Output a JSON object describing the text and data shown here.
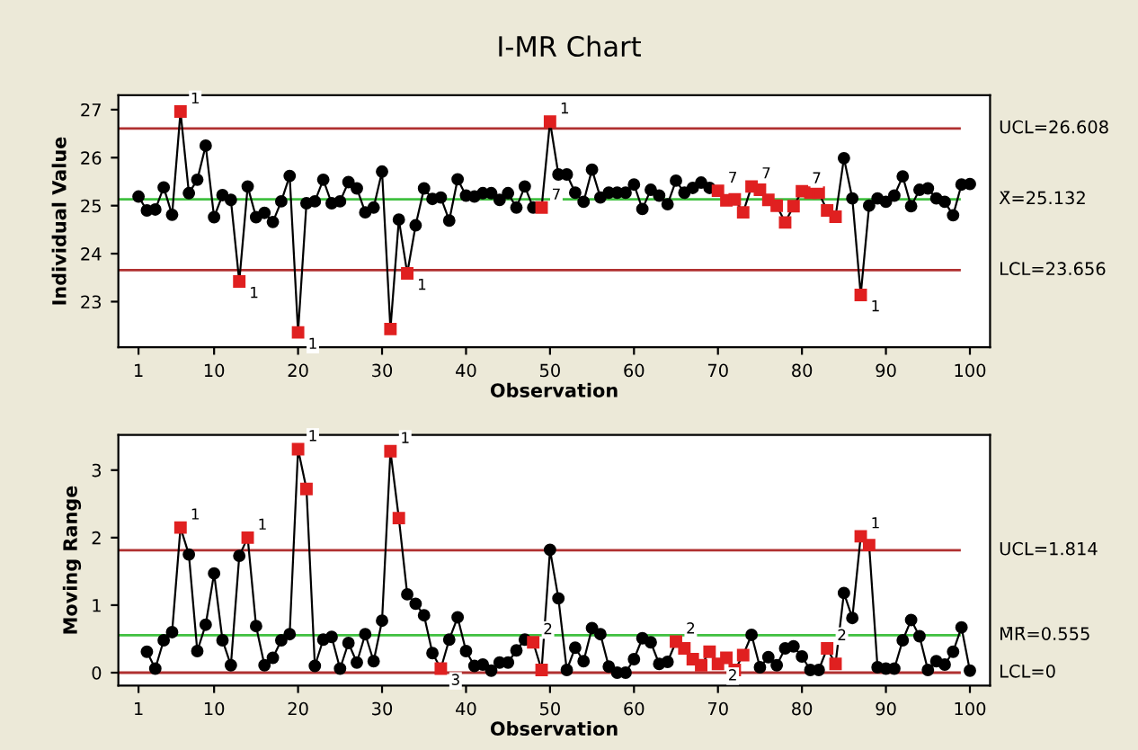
{
  "chart_data": [
    {
      "type": "line",
      "title": "I-MR Chart",
      "xlabel": "Observation",
      "ylabel": "Individual Value",
      "marker": "circle",
      "grid": false,
      "legend": false,
      "x": [
        1,
        2,
        3,
        4,
        5,
        6,
        7,
        8,
        9,
        10,
        11,
        12,
        13,
        14,
        15,
        16,
        17,
        18,
        19,
        20,
        21,
        22,
        23,
        24,
        25,
        26,
        27,
        28,
        29,
        30,
        31,
        32,
        33,
        34,
        35,
        36,
        37,
        38,
        39,
        40,
        41,
        42,
        43,
        44,
        45,
        46,
        47,
        48,
        49,
        50,
        51,
        52,
        53,
        54,
        55,
        56,
        57,
        58,
        59,
        60,
        61,
        62,
        63,
        64,
        65,
        66,
        67,
        68,
        69,
        70,
        71,
        72,
        73,
        74,
        75,
        76,
        77,
        78,
        79,
        80,
        81,
        82,
        83,
        84,
        85,
        86,
        87,
        88,
        89,
        90,
        91,
        92,
        93,
        94,
        95,
        96,
        97,
        98,
        99,
        100
      ],
      "xlim": [
        -1.4,
        102.4
      ],
      "xticks": [
        1,
        10,
        20,
        30,
        40,
        50,
        60,
        70,
        80,
        90,
        100
      ],
      "ylim": [
        22.05,
        27.3
      ],
      "yticks": [
        23,
        24,
        25,
        26,
        27
      ],
      "series": [
        {
          "color": "#000000",
          "values": [
            25.19,
            24.9,
            24.92,
            25.38,
            24.81,
            26.96,
            25.26,
            25.54,
            26.25,
            24.76,
            25.22,
            25.12,
            23.42,
            25.4,
            24.76,
            24.85,
            24.66,
            25.09,
            25.62,
            22.36,
            25.05,
            25.09,
            25.54,
            25.05,
            25.09,
            25.49,
            25.36,
            24.86,
            24.96,
            25.71,
            22.43,
            24.71,
            23.59,
            24.59,
            25.36,
            25.14,
            25.17,
            24.69,
            25.55,
            25.21,
            25.19,
            25.26,
            25.26,
            25.12,
            25.26,
            24.96,
            25.4,
            24.96,
            24.96,
            26.75,
            25.65,
            25.65,
            25.27,
            25.08,
            25.75,
            25.17,
            25.27,
            25.27,
            25.27,
            25.44,
            24.93,
            25.33,
            25.21,
            25.03,
            25.52,
            25.27,
            25.37,
            25.48,
            25.37,
            25.31,
            25.11,
            25.13,
            24.86,
            25.4,
            25.33,
            25.12,
            25.0,
            24.65,
            24.99,
            25.3,
            25.27,
            25.27,
            24.9,
            24.77,
            25.99,
            25.15,
            23.14,
            25.0,
            25.15,
            25.08,
            25.21,
            25.61,
            24.99,
            25.33,
            25.36,
            25.15,
            25.08,
            24.8,
            25.44,
            25.45
          ],
          "colors": [
            "#000000",
            "#000000",
            "#000000",
            "#000000",
            "#000000",
            "#e02020",
            "#000000",
            "#000000",
            "#000000",
            "#000000",
            "#000000",
            "#000000",
            "#e02020",
            "#000000",
            "#000000",
            "#000000",
            "#000000",
            "#000000",
            "#000000",
            "#e02020",
            "#000000",
            "#000000",
            "#000000",
            "#000000",
            "#000000",
            "#000000",
            "#000000",
            "#000000",
            "#000000",
            "#000000",
            "#e02020",
            "#000000",
            "#e02020",
            "#000000",
            "#000000",
            "#000000",
            "#000000",
            "#000000",
            "#000000",
            "#000000",
            "#000000",
            "#000000",
            "#000000",
            "#000000",
            "#000000",
            "#000000",
            "#000000",
            "#000000",
            "#e02020",
            "#e02020",
            "#000000",
            "#000000",
            "#000000",
            "#000000",
            "#000000",
            "#000000",
            "#000000",
            "#000000",
            "#000000",
            "#000000",
            "#000000",
            "#000000",
            "#000000",
            "#000000",
            "#000000",
            "#000000",
            "#000000",
            "#000000",
            "#000000",
            "#e02020",
            "#e02020",
            "#e02020",
            "#e02020",
            "#e02020",
            "#e02020",
            "#e02020",
            "#e02020",
            "#e02020",
            "#e02020",
            "#e02020",
            "#e02020",
            "#e02020",
            "#e02020",
            "#e02020",
            "#000000",
            "#000000",
            "#e02020",
            "#000000",
            "#000000",
            "#000000",
            "#000000",
            "#000000",
            "#000000",
            "#000000",
            "#000000",
            "#000000",
            "#000000",
            "#000000",
            "#000000",
            "#000000"
          ]
        }
      ],
      "ref_lines": [
        {
          "axis": "y",
          "value": 26.608,
          "label": "UCL=26.608",
          "color": "#b03030"
        },
        {
          "axis": "y",
          "value": 25.132,
          "label": "X̄=25.132",
          "color": "#40c040"
        },
        {
          "axis": "y",
          "value": 23.656,
          "label": "LCL=23.656",
          "color": "#b03030"
        }
      ],
      "annotations": [
        {
          "text": "1",
          "x": 6,
          "y": 26.96
        },
        {
          "text": "1",
          "x": 13,
          "y": 23.42
        },
        {
          "text": "1",
          "x": 20,
          "y": 22.36
        },
        {
          "text": "1",
          "x": 33,
          "y": 23.59
        },
        {
          "text": "1",
          "x": 50,
          "y": 26.75
        },
        {
          "text": "1",
          "x": 87,
          "y": 23.14
        },
        {
          "text": "7",
          "x": 49,
          "y": 24.96
        },
        {
          "text": "7",
          "x": 70,
          "y": 25.31
        },
        {
          "text": "7",
          "x": 74,
          "y": 25.4
        },
        {
          "text": "7",
          "x": 80,
          "y": 25.3
        }
      ]
    },
    {
      "type": "line",
      "xlabel": "Observation",
      "ylabel": "Moving Range",
      "marker": "circle",
      "grid": false,
      "legend": false,
      "x": [
        2,
        3,
        4,
        5,
        6,
        7,
        8,
        9,
        10,
        11,
        12,
        13,
        14,
        15,
        16,
        17,
        18,
        19,
        20,
        21,
        22,
        23,
        24,
        25,
        26,
        27,
        28,
        29,
        30,
        31,
        32,
        33,
        34,
        35,
        36,
        37,
        38,
        39,
        40,
        41,
        42,
        43,
        44,
        45,
        46,
        47,
        48,
        49,
        50,
        51,
        52,
        53,
        54,
        55,
        56,
        57,
        58,
        59,
        60,
        61,
        62,
        63,
        64,
        65,
        66,
        67,
        68,
        69,
        70,
        71,
        72,
        73,
        74,
        75,
        76,
        77,
        78,
        79,
        80,
        81,
        82,
        83,
        84,
        85,
        86,
        87,
        88,
        89,
        90,
        91,
        92,
        93,
        94,
        95,
        96,
        97,
        98,
        99,
        100
      ],
      "xlim": [
        -1.4,
        102.4
      ],
      "xticks": [
        1,
        10,
        20,
        30,
        40,
        50,
        60,
        70,
        80,
        90,
        100
      ],
      "ylim": [
        -0.19,
        3.52
      ],
      "yticks": [
        0,
        1,
        2,
        3
      ],
      "series": [
        {
          "color": "#000000",
          "values": [
            0.31,
            0.06,
            0.48,
            0.6,
            2.15,
            1.75,
            0.32,
            0.71,
            1.47,
            0.48,
            0.11,
            1.73,
            2.0,
            0.69,
            0.11,
            0.22,
            0.48,
            0.57,
            3.31,
            2.72,
            0.1,
            0.49,
            0.53,
            0.06,
            0.44,
            0.15,
            0.57,
            0.17,
            0.77,
            3.28,
            2.29,
            1.16,
            1.02,
            0.85,
            0.29,
            0.06,
            0.49,
            0.82,
            0.32,
            0.1,
            0.12,
            0.03,
            0.15,
            0.15,
            0.33,
            0.49,
            0.45,
            0.04,
            1.82,
            1.1,
            0.04,
            0.37,
            0.17,
            0.66,
            0.57,
            0.09,
            0.0,
            0.0,
            0.2,
            0.51,
            0.45,
            0.13,
            0.16,
            0.46,
            0.36,
            0.2,
            0.11,
            0.31,
            0.13,
            0.22,
            0.04,
            0.26,
            0.56,
            0.08,
            0.23,
            0.11,
            0.36,
            0.39,
            0.24,
            0.04,
            0.04,
            0.36,
            0.13,
            1.18,
            0.81,
            2.02,
            1.89,
            0.08,
            0.06,
            0.06,
            0.48,
            0.78,
            0.54,
            0.04,
            0.17,
            0.12,
            0.31,
            0.67,
            0.03
          ],
          "colors": [
            "#000000",
            "#000000",
            "#000000",
            "#000000",
            "#e02020",
            "#000000",
            "#000000",
            "#000000",
            "#000000",
            "#000000",
            "#000000",
            "#000000",
            "#e02020",
            "#000000",
            "#000000",
            "#000000",
            "#000000",
            "#000000",
            "#e02020",
            "#e02020",
            "#000000",
            "#000000",
            "#000000",
            "#000000",
            "#000000",
            "#000000",
            "#000000",
            "#000000",
            "#000000",
            "#e02020",
            "#e02020",
            "#000000",
            "#000000",
            "#000000",
            "#000000",
            "#e02020",
            "#000000",
            "#000000",
            "#000000",
            "#000000",
            "#000000",
            "#000000",
            "#000000",
            "#000000",
            "#000000",
            "#000000",
            "#e02020",
            "#e02020",
            "#000000",
            "#000000",
            "#000000",
            "#000000",
            "#000000",
            "#000000",
            "#000000",
            "#000000",
            "#000000",
            "#000000",
            "#000000",
            "#000000",
            "#000000",
            "#000000",
            "#000000",
            "#e02020",
            "#e02020",
            "#e02020",
            "#e02020",
            "#e02020",
            "#e02020",
            "#e02020",
            "#e02020",
            "#e02020",
            "#000000",
            "#000000",
            "#000000",
            "#000000",
            "#000000",
            "#000000",
            "#000000",
            "#000000",
            "#000000",
            "#e02020",
            "#e02020",
            "#000000",
            "#000000",
            "#e02020",
            "#e02020",
            "#000000",
            "#000000",
            "#000000",
            "#000000",
            "#000000",
            "#000000",
            "#000000",
            "#000000",
            "#000000",
            "#000000",
            "#000000",
            "#000000"
          ]
        }
      ],
      "ref_lines": [
        {
          "axis": "y",
          "value": 1.814,
          "label": "UCL=1.814",
          "color": "#b03030"
        },
        {
          "axis": "y",
          "value": 0.555,
          "label": "M̄R̄=0.555",
          "color": "#40c040"
        },
        {
          "axis": "y",
          "value": 0,
          "label": "LCL=0",
          "color": "#b03030"
        }
      ],
      "annotations": [
        {
          "text": "1",
          "x": 6,
          "y": 2.15
        },
        {
          "text": "1",
          "x": 14,
          "y": 2.0
        },
        {
          "text": "1",
          "x": 20,
          "y": 3.31
        },
        {
          "text": "1",
          "x": 31,
          "y": 3.28
        },
        {
          "text": "1",
          "x": 87,
          "y": 2.02
        },
        {
          "text": "3",
          "x": 37,
          "y": 0.06
        },
        {
          "text": "2",
          "x": 48,
          "y": 0.45
        },
        {
          "text": "2",
          "x": 65,
          "y": 0.46
        },
        {
          "text": "2",
          "x": 70,
          "y": 0.13
        },
        {
          "text": "2",
          "x": 83,
          "y": 0.36
        }
      ]
    }
  ]
}
